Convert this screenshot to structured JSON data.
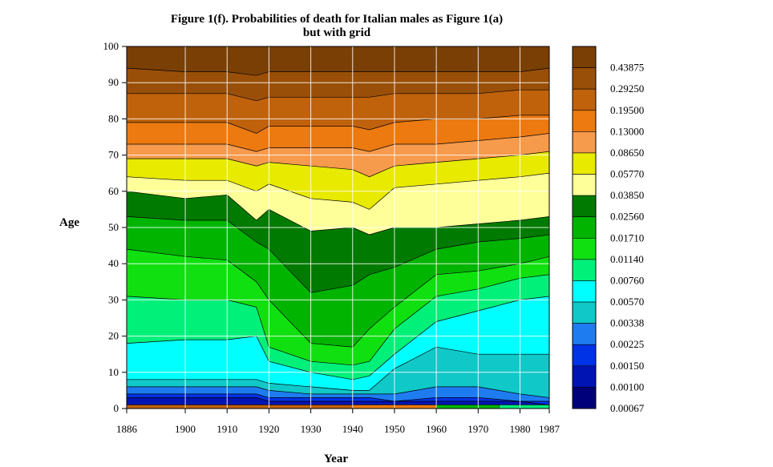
{
  "chart_data": {
    "type": "heatmap",
    "title": "Figure 1(f). Probabilities of death for Italian males as Figure 1(a)",
    "subtitle": "but with grid",
    "xlabel": "Year",
    "ylabel": "Age",
    "xlim": [
      1886,
      1987
    ],
    "ylim": [
      0,
      100
    ],
    "x_ticks": [
      "1886",
      "1900",
      "1910",
      "1920",
      "1930",
      "1940",
      "1950",
      "1960",
      "1970",
      "1980",
      "1987"
    ],
    "x_tick_values": [
      1886,
      1900,
      1910,
      1920,
      1930,
      1940,
      1950,
      1960,
      1970,
      1980,
      1987
    ],
    "y_ticks": [
      "0",
      "10",
      "20",
      "30",
      "40",
      "50",
      "60",
      "70",
      "80",
      "90",
      "100"
    ],
    "y_tick_values": [
      0,
      10,
      20,
      30,
      40,
      50,
      60,
      70,
      80,
      90,
      100
    ],
    "grid": true,
    "legend_position": "right",
    "legend": [
      {
        "label": "0.43875",
        "color": "#7a3f05"
      },
      {
        "label": "0.29250",
        "color": "#9a4f08"
      },
      {
        "label": "0.19500",
        "color": "#c0620c"
      },
      {
        "label": "0.13000",
        "color": "#ec7a10"
      },
      {
        "label": "0.08650",
        "color": "#f69a4c"
      },
      {
        "label": "0.05770",
        "color": "#e8ea00"
      },
      {
        "label": "0.03850",
        "color": "#ffff99"
      },
      {
        "label": "0.02560",
        "color": "#007a00"
      },
      {
        "label": "0.01710",
        "color": "#00b400"
      },
      {
        "label": "0.01140",
        "color": "#10e010"
      },
      {
        "label": "0.00760",
        "color": "#00f07a"
      },
      {
        "label": "0.00570",
        "color": "#00ffff"
      },
      {
        "label": "0.00338",
        "color": "#10c8c8"
      },
      {
        "label": "0.00225",
        "color": "#1e7cf0"
      },
      {
        "label": "0.00150",
        "color": "#0032e6"
      },
      {
        "label": "0.00100",
        "color": "#0014b4"
      },
      {
        "label": "0.00067",
        "color": "#00007a"
      }
    ],
    "bands_by_year": [
      {
        "year": 1886,
        "band_top_ages": [
          1,
          3,
          4,
          6,
          8,
          18,
          31,
          44,
          53,
          60,
          64,
          69,
          73,
          79,
          87,
          94,
          100
        ]
      },
      {
        "year": 1900,
        "band_top_ages": [
          1,
          3,
          4,
          6,
          8,
          19,
          30,
          42,
          52,
          58,
          63,
          69,
          73,
          79,
          87,
          93,
          100
        ]
      },
      {
        "year": 1910,
        "band_top_ages": [
          1,
          3,
          4,
          6,
          8,
          19,
          30,
          41,
          52,
          59,
          63,
          69,
          73,
          79,
          87,
          93,
          100
        ]
      },
      {
        "year": 1917,
        "band_top_ages": [
          1,
          3,
          4,
          6,
          8,
          20,
          28,
          35,
          46,
          52,
          60,
          67,
          71,
          76,
          85,
          92,
          100
        ]
      },
      {
        "year": 1920,
        "band_top_ages": [
          1,
          2,
          3,
          5,
          7,
          13,
          17,
          30,
          44,
          55,
          62,
          68,
          72,
          78,
          86,
          93,
          100
        ]
      },
      {
        "year": 1930,
        "band_top_ages": [
          1,
          2,
          3,
          4,
          6,
          10,
          13,
          18,
          32,
          49,
          58,
          67,
          72,
          78,
          86,
          93,
          100
        ]
      },
      {
        "year": 1940,
        "band_top_ages": [
          1,
          2,
          3,
          4,
          5,
          8,
          12,
          17,
          34,
          50,
          57,
          66,
          72,
          78,
          86,
          93,
          100
        ]
      },
      {
        "year": 1944,
        "band_top_ages": [
          1,
          2,
          3,
          4,
          5,
          9,
          13,
          22,
          37,
          48,
          55,
          64,
          71,
          77,
          86,
          93,
          100
        ]
      },
      {
        "year": 1950,
        "band_top_ages": [
          1,
          2,
          2,
          4,
          11,
          15,
          22,
          28,
          39,
          50,
          61,
          67,
          73,
          79,
          87,
          93,
          100
        ]
      },
      {
        "year": 1960,
        "band_top_ages": [
          1,
          2,
          3,
          6,
          17,
          24,
          31,
          37,
          44,
          50,
          62,
          68,
          73,
          80,
          87,
          93,
          100
        ]
      },
      {
        "year": 1970,
        "band_top_ages": [
          1,
          2,
          3,
          6,
          15,
          27,
          33,
          38,
          46,
          51,
          63,
          69,
          74,
          80,
          87,
          93,
          100
        ]
      },
      {
        "year": 1980,
        "band_top_ages": [
          1,
          2,
          2,
          4,
          15,
          30,
          36,
          40,
          47,
          52,
          64,
          70,
          75,
          81,
          88,
          93,
          100
        ]
      },
      {
        "year": 1987,
        "band_top_ages": [
          1,
          1,
          2,
          3,
          15,
          31,
          37,
          42,
          48,
          53,
          65,
          71,
          76,
          81,
          88,
          94,
          100
        ]
      }
    ],
    "infant_bands": [
      {
        "year": 1886,
        "color": "#c0620c"
      },
      {
        "year": 1940,
        "color": "#ec7a10"
      },
      {
        "year": 1960,
        "color": "#00b400"
      },
      {
        "year": 1975,
        "color": "#00f07a"
      },
      {
        "year": 1987,
        "color": "#00ffff"
      }
    ]
  }
}
